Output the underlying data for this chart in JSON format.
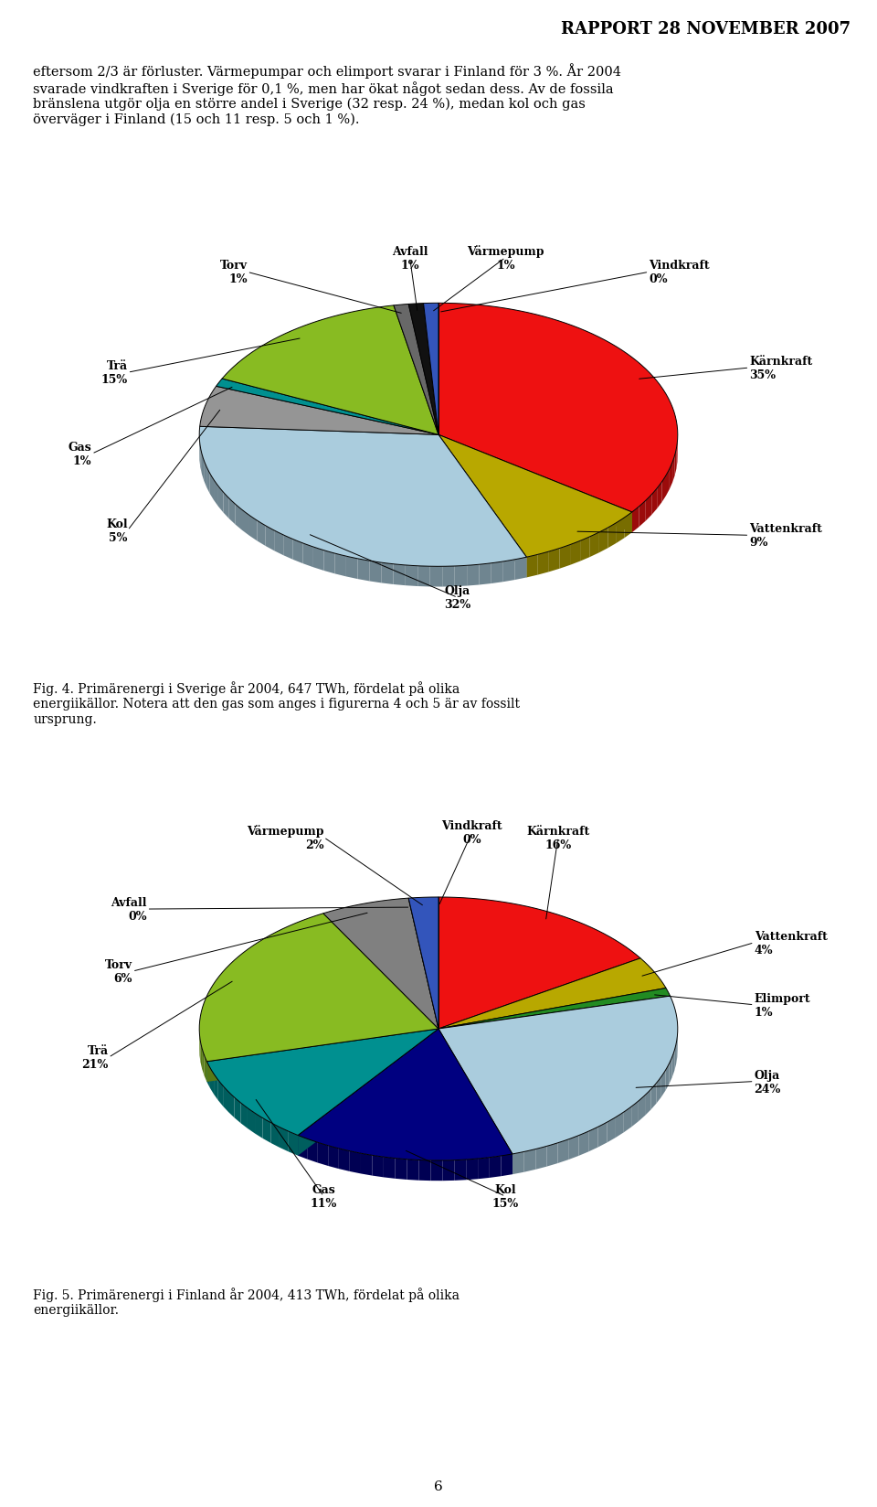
{
  "title": "RAPPORT 28 NOVEMBER 2007",
  "header_text": "eftersom 2/3 är förluster. Värmepumpar och elimport svarar i Finland för 3 %. År 2004\nsvarade vindkraften i Sverige för 0,1 %, men har ökat något sedan dess. Av de fossila\nbränslena utgör olja en större andel i Sverige (32 resp. 24 %), medan kol och gas\növerväger i Finland (15 och 11 resp. 5 och 1 %).",
  "chart1_values": [
    35,
    9,
    32,
    5,
    1,
    15,
    1,
    1,
    1,
    0
  ],
  "chart1_labels": [
    "Kärnkraft",
    "Vattenkraft",
    "Olja",
    "Kol",
    "Gas",
    "Trä",
    "Torv",
    "Avfall",
    "Värmepump",
    "Vindkraft"
  ],
  "chart1_colors": [
    "#ee1111",
    "#b8a800",
    "#aaccdd",
    "#959595",
    "#009090",
    "#88bb22",
    "#686868",
    "#111111",
    "#3355bb",
    "#dddddd"
  ],
  "chart1_caption": "Fig. 4. Primärenergi i Sverige år 2004, 647 TWh, fördelat på olika\nenergiikällor. Notera att den gas som anges i figurerna 4 och 5 är av fossilt\nursprung.",
  "chart2_values": [
    16,
    4,
    1,
    24,
    15,
    11,
    21,
    6,
    0,
    2,
    0
  ],
  "chart2_labels": [
    "Kärnkraft",
    "Vattenkraft",
    "Elimport",
    "Olja",
    "Kol",
    "Gas",
    "Trä",
    "Torv",
    "Avfall",
    "Värmepump",
    "Vindkraft"
  ],
  "chart2_colors": [
    "#ee1111",
    "#b8a800",
    "#228b22",
    "#aaccdd",
    "#000080",
    "#009090",
    "#88bb22",
    "#808080",
    "#a0a0a0",
    "#3355bb",
    "#dddddd"
  ],
  "chart2_caption": "Fig. 5. Primärenergi i Finland år 2004, 413 TWh, fördelat på olika\nenergiikällor.",
  "background_color": "#ffffff",
  "label_fontsize": 9.0,
  "caption_fontsize": 10.0,
  "header_fontsize": 10.5,
  "title_fontsize": 13.0,
  "depth_ratio": 0.55,
  "ellipse_ratio": 0.55
}
